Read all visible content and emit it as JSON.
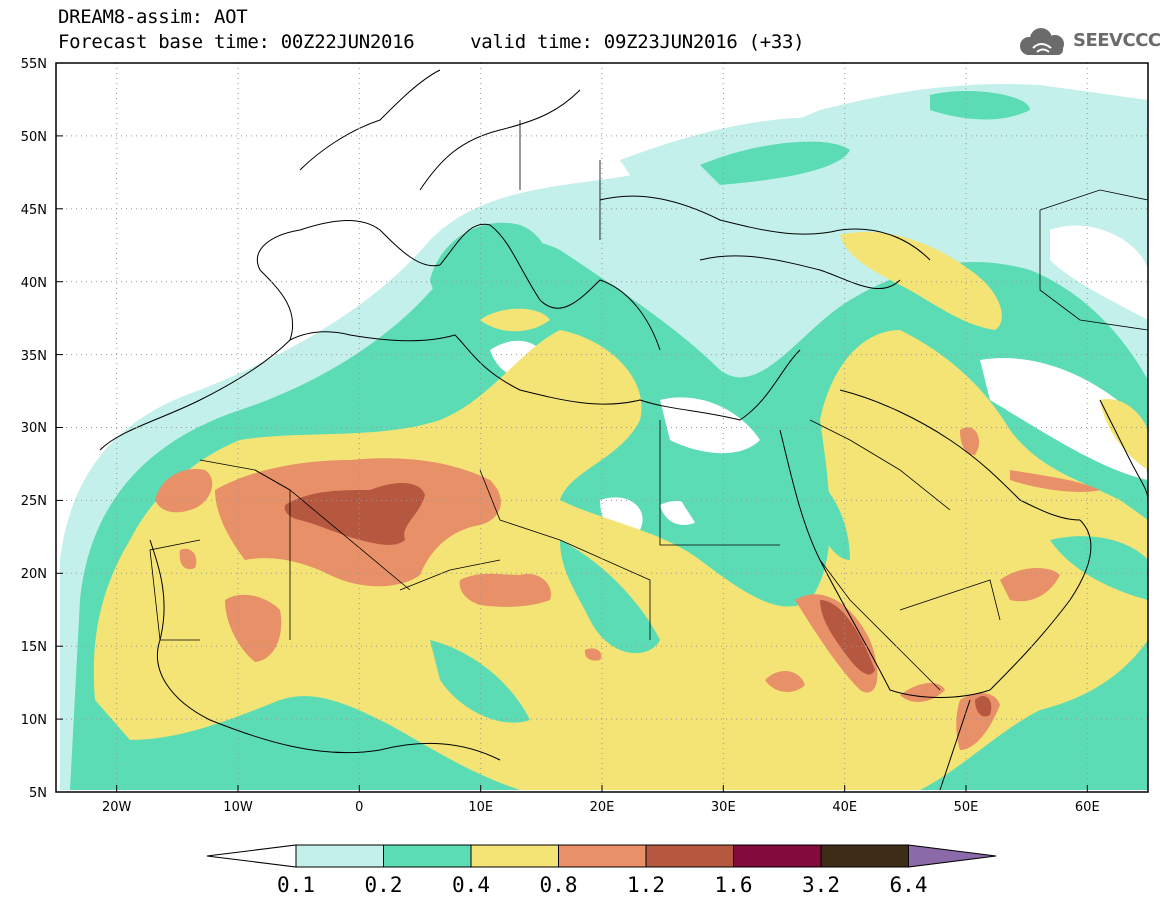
{
  "title": {
    "line1": "DREAM8-assim: AOT",
    "line2": "Forecast base time: 00Z22JUN2016     valid time: 09Z23JUN2016 (+33)"
  },
  "logo": {
    "text": "SEEVCCC",
    "icon": "cloud-icon"
  },
  "map": {
    "lon_range": [
      -25,
      65
    ],
    "lat_range": [
      5,
      55
    ],
    "lat_ticks": [
      "55N",
      "50N",
      "45N",
      "40N",
      "35N",
      "30N",
      "25N",
      "20N",
      "15N",
      "10N",
      "5N"
    ],
    "lon_ticks": [
      "20W",
      "10W",
      "0",
      "10E",
      "20E",
      "30E",
      "40E",
      "50E",
      "60E"
    ],
    "grid": "dotted"
  },
  "colorbar": {
    "labels": [
      "0.1",
      "0.2",
      "0.4",
      "0.8",
      "1.2",
      "1.6",
      "3.2",
      "6.4"
    ],
    "colors": [
      "#c3f0ea",
      "#5cdcb4",
      "#f4e475",
      "#e89068",
      "#b65840",
      "#820c3c",
      "#3e2c18",
      "#8a6aa8"
    ]
  }
}
